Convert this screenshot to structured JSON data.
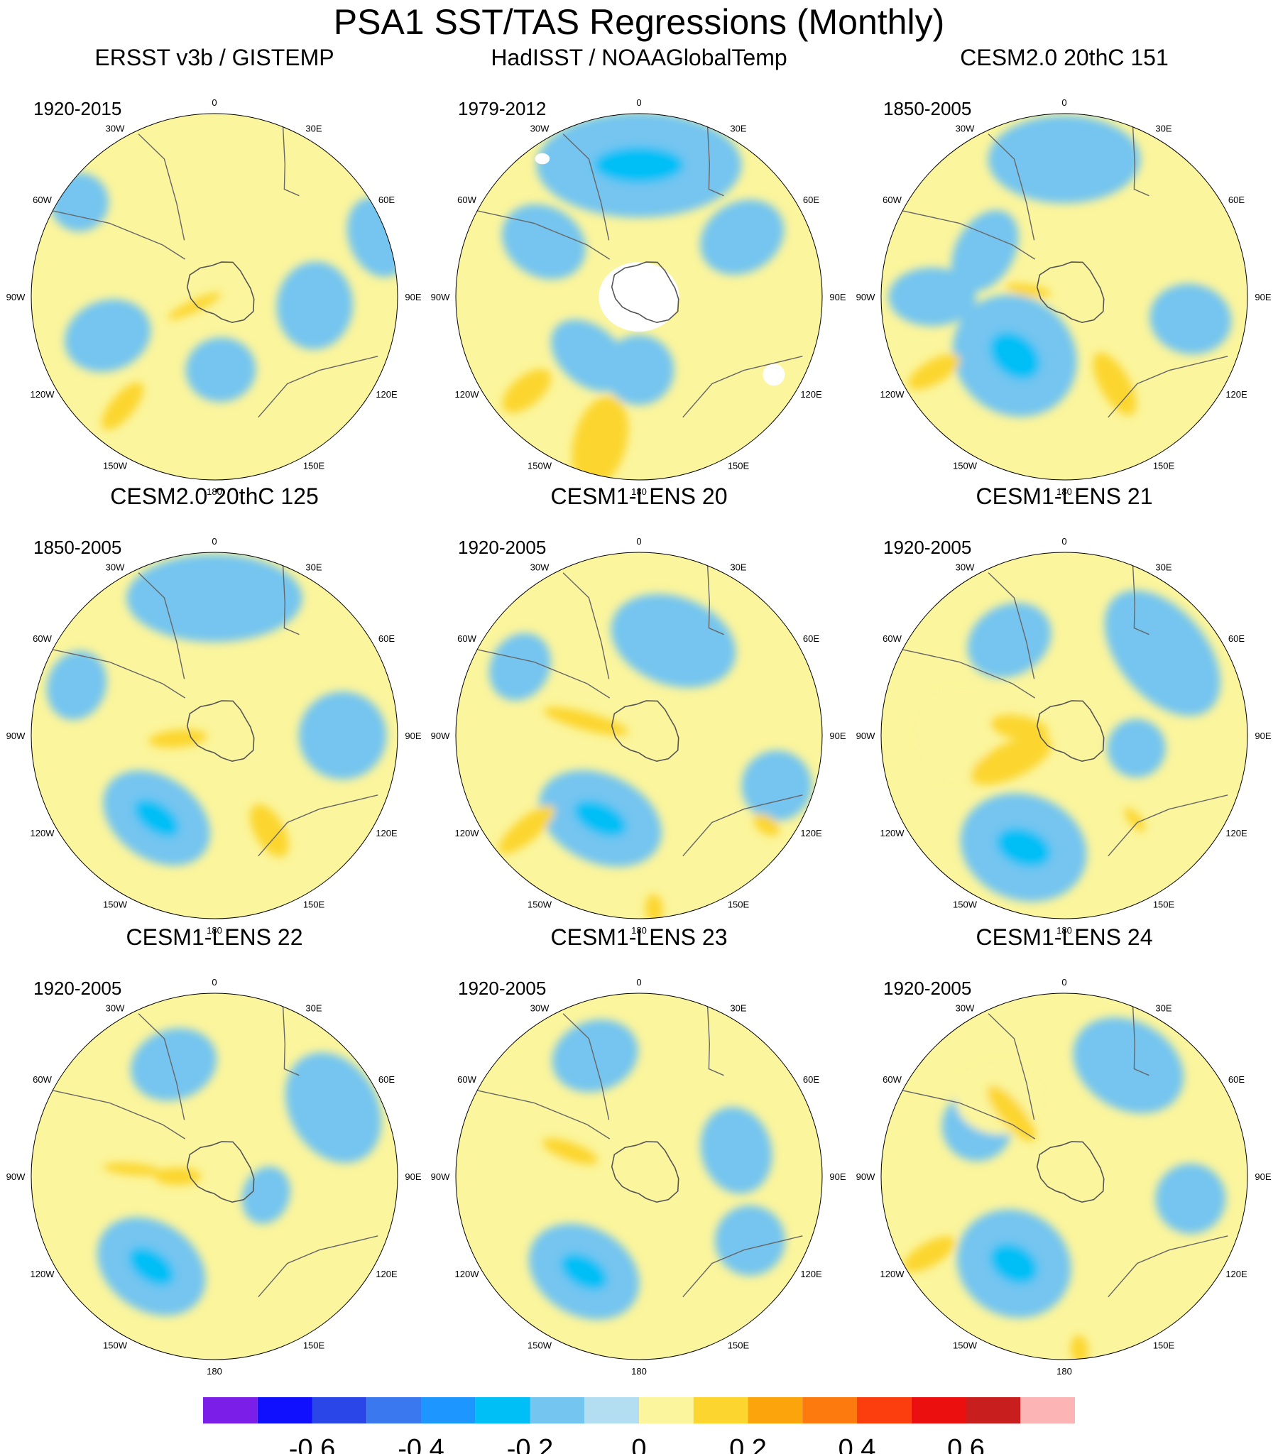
{
  "chart_data": {
    "type": "polar-stereographic contour map panels",
    "title": "PSA1 SST/TAS Regressions (Monthly)",
    "hemisphere": "Southern Hemisphere",
    "longitude_labels": [
      "0",
      "30E",
      "60E",
      "90E",
      "120E",
      "150E",
      "180",
      "150W",
      "120W",
      "90W",
      "60W",
      "30W"
    ],
    "longitude_label_angles_deg": [
      0,
      30,
      60,
      90,
      120,
      150,
      180,
      -150,
      -120,
      -90,
      -60,
      -30
    ],
    "colorbar": {
      "colors": [
        "#7b1fe8",
        "#1010ff",
        "#2a45e8",
        "#3a78f0",
        "#1e96ff",
        "#00bff6",
        "#74c5f0",
        "#b3def2",
        "#fbf59d",
        "#fcd52e",
        "#fca40c",
        "#fc7a0e",
        "#fc3d0e",
        "#ec0f0f",
        "#c81e1e",
        "#fcb4b4"
      ],
      "tick_labels": [
        "-0.6",
        "-0.4",
        "-0.2",
        "0",
        "0.2",
        "0.4",
        "0.6"
      ],
      "tick_values": [
        -0.6,
        -0.4,
        -0.2,
        0,
        0.2,
        0.4,
        0.6
      ]
    },
    "panels": [
      {
        "title": "ERSST v3b / GISTEMP",
        "period": "1920-2015",
        "blue_regions": [
          [
            250,
            0.62,
            0.12,
            0.15
          ],
          [
            95,
            0.55,
            0.15,
            0.13
          ],
          [
            175,
            0.4,
            0.12,
            0.11
          ],
          [
            70,
            0.95,
            0.14,
            0.1
          ],
          [
            305,
            0.9,
            0.1,
            0.1
          ]
        ],
        "yellow_regions": [],
        "orange_regions": [
          [
            220,
            0.78,
            0.1,
            0.04
          ],
          [
            245,
            0.12,
            0.1,
            0.02
          ]
        ],
        "missing_regions": []
      },
      {
        "title": "HadISST / NOAAGlobalTemp",
        "period": "1979-2012",
        "blue_regions": [
          [
            0,
            0.72,
            0.35,
            0.18
          ],
          [
            300,
            0.6,
            0.12,
            0.15
          ],
          [
            60,
            0.65,
            0.12,
            0.15
          ],
          [
            220,
            0.42,
            0.15,
            0.1
          ],
          [
            180,
            0.4,
            0.12,
            0.12
          ]
        ],
        "yellow_regions": [],
        "orange_regions": [
          [
            195,
            0.82,
            0.16,
            0.09
          ],
          [
            230,
            0.8,
            0.1,
            0.05
          ]
        ],
        "missing_regions": [
          [
            0,
            0.0,
            0.22,
            0.19
          ],
          [
            120,
            0.85,
            0.06,
            0.06
          ],
          [
            325,
            0.92,
            0.04,
            0.03
          ]
        ]
      },
      {
        "title": "CESM2.0 20thC 151",
        "period": "1850-2005",
        "blue_regions": [
          [
            220,
            0.42,
            0.22,
            0.2
          ],
          [
            0,
            0.75,
            0.26,
            0.15
          ],
          [
            270,
            0.72,
            0.1,
            0.15
          ],
          [
            100,
            0.7,
            0.12,
            0.14
          ],
          [
            300,
            0.5,
            0.15,
            0.1
          ]
        ],
        "yellow_regions": [],
        "orange_regions": [
          [
            150,
            0.55,
            0.12,
            0.05
          ],
          [
            240,
            0.82,
            0.1,
            0.04
          ],
          [
            280,
            0.2,
            0.08,
            0.02
          ]
        ],
        "missing_regions": []
      },
      {
        "title": "CESM2.0 20thC 125",
        "period": "1850-2005",
        "blue_regions": [
          [
            215,
            0.55,
            0.2,
            0.14
          ],
          [
            0,
            0.75,
            0.3,
            0.15
          ],
          [
            90,
            0.7,
            0.15,
            0.15
          ],
          [
            290,
            0.8,
            0.12,
            0.1
          ]
        ],
        "yellow_regions": [],
        "orange_regions": [
          [
            150,
            0.6,
            0.1,
            0.05
          ],
          [
            265,
            0.2,
            0.1,
            0.03
          ]
        ],
        "missing_regions": []
      },
      {
        "title": "CESM1-LENS 20",
        "period": "1920-2005",
        "blue_regions": [
          [
            205,
            0.5,
            0.22,
            0.15
          ],
          [
            20,
            0.55,
            0.22,
            0.15
          ],
          [
            110,
            0.8,
            0.12,
            0.12
          ],
          [
            300,
            0.75,
            0.12,
            0.1
          ]
        ],
        "yellow_regions": [],
        "orange_regions": [
          [
            285,
            0.3,
            0.15,
            0.03
          ],
          [
            230,
            0.8,
            0.12,
            0.04
          ],
          [
            125,
            0.85,
            0.05,
            0.03
          ],
          [
            175,
            0.95,
            0.05,
            0.03
          ]
        ],
        "missing_regions": []
      },
      {
        "title": "CESM1-LENS 21",
        "period": "1920-2005",
        "blue_regions": [
          [
            200,
            0.65,
            0.22,
            0.18
          ],
          [
            50,
            0.7,
            0.25,
            0.15
          ],
          [
            330,
            0.6,
            0.15,
            0.12
          ],
          [
            100,
            0.4,
            0.1,
            0.1
          ]
        ],
        "yellow_regions": [
          [
            270,
            0.6,
            0.12,
            0.15
          ]
        ],
        "orange_regions": [
          [
            280,
            0.25,
            0.1,
            0.04
          ],
          [
            245,
            0.32,
            0.15,
            0.06
          ],
          [
            140,
            0.6,
            0.05,
            0.02
          ]
        ],
        "missing_regions": []
      },
      {
        "title": "CESM1-LENS 22",
        "period": "1920-2005",
        "blue_regions": [
          [
            215,
            0.6,
            0.2,
            0.15
          ],
          [
            340,
            0.65,
            0.15,
            0.12
          ],
          [
            60,
            0.75,
            0.2,
            0.15
          ],
          [
            110,
            0.3,
            0.1,
            0.08
          ]
        ],
        "yellow_regions": [],
        "orange_regions": [
          [
            270,
            0.2,
            0.08,
            0.03
          ],
          [
            275,
            0.45,
            0.1,
            0.02
          ]
        ],
        "missing_regions": []
      },
      {
        "title": "CESM1-LENS 23",
        "period": "1920-2005",
        "blue_regions": [
          [
            210,
            0.6,
            0.2,
            0.15
          ],
          [
            340,
            0.7,
            0.15,
            0.12
          ],
          [
            75,
            0.55,
            0.15,
            0.12
          ],
          [
            120,
            0.7,
            0.12,
            0.12
          ]
        ],
        "yellow_regions": [],
        "orange_regions": [
          [
            290,
            0.4,
            0.1,
            0.03
          ]
        ],
        "missing_regions": []
      },
      {
        "title": "CESM1-LENS 24",
        "period": "1920-2005",
        "blue_regions": [
          [
            210,
            0.55,
            0.2,
            0.18
          ],
          [
            30,
            0.7,
            0.2,
            0.15
          ],
          [
            100,
            0.7,
            0.12,
            0.12
          ],
          [
            300,
            0.55,
            0.12,
            0.12
          ]
        ],
        "yellow_regions": [
          [
            320,
            0.55,
            0.15,
            0.12
          ]
        ],
        "orange_regions": [
          [
            240,
            0.85,
            0.1,
            0.04
          ],
          [
            320,
            0.45,
            0.12,
            0.04
          ],
          [
            175,
            0.95,
            0.05,
            0.03
          ]
        ],
        "missing_regions": []
      }
    ]
  }
}
